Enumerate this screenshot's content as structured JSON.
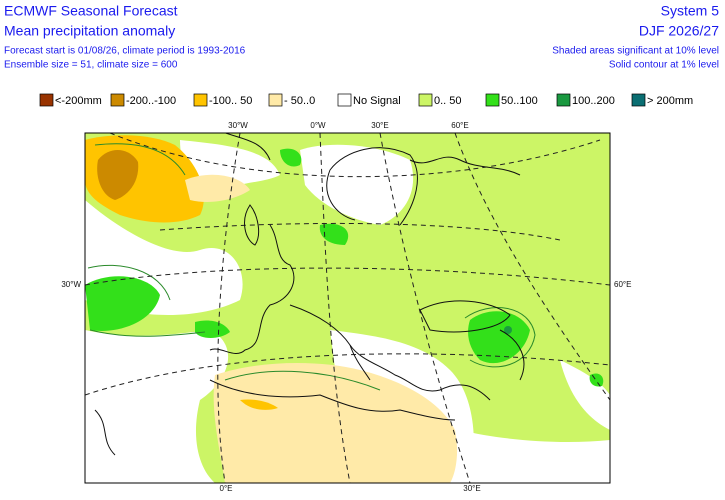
{
  "header": {
    "title": "ECMWF Seasonal Forecast",
    "subtitle": "Mean precipitation anomaly",
    "forecast_info": "Forecast start is 01/08/26, climate period is 1993-2016",
    "ensemble_info": "Ensemble size = 51, climate size = 600",
    "system": "System 5",
    "season": "DJF 2026/27",
    "shading_note": "Shaded areas significant at 10% level",
    "contour_note": "Solid contour at 1% level"
  },
  "legend": [
    {
      "label": "<-200mm",
      "color": "#993300"
    },
    {
      "label": "-200..-100",
      "color": "#cc8a00"
    },
    {
      "label": "-100.. 50",
      "color": "#ffc400"
    },
    {
      "label": "- 50..0",
      "color": "#ffeaa8"
    },
    {
      "label": "No Signal",
      "color": "#ffffff"
    },
    {
      "label": "0.. 50",
      "color": "#ccf566"
    },
    {
      "label": "50..100",
      "color": "#33e01a"
    },
    {
      "label": "100..200",
      "color": "#1a9940"
    },
    {
      "label": "> 200mm",
      "color": "#0a6e72"
    }
  ],
  "map_labels": {
    "top_30w": "30°W",
    "top_0w": "0°W",
    "top_30e": "30°E",
    "top_60e": "60°E",
    "left_30w": "30°W",
    "right_60e": "60°E",
    "bottom_0e": "0°E",
    "bottom_30e": "30°E"
  }
}
